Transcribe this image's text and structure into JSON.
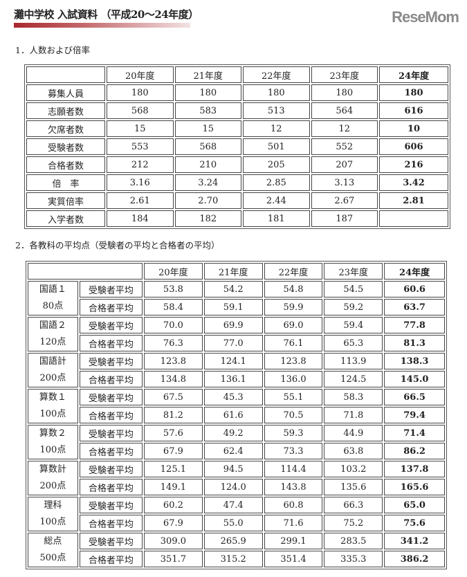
{
  "title": "灘中学校 入試資料 （平成20～24年度）",
  "section1": {
    "heading": "1．人数および倍率",
    "headers": [
      "",
      "20年度",
      "21年度",
      "22年度",
      "23年度",
      "24年度"
    ],
    "rows": [
      {
        "label": "募集人員",
        "values": [
          "180",
          "180",
          "180",
          "180",
          "180"
        ]
      },
      {
        "label": "志願者数",
        "values": [
          "568",
          "583",
          "513",
          "564",
          "616"
        ]
      },
      {
        "label": "欠席者数",
        "values": [
          "15",
          "15",
          "12",
          "12",
          "10"
        ]
      },
      {
        "label": "受験者数",
        "values": [
          "553",
          "568",
          "501",
          "552",
          "606"
        ]
      },
      {
        "label": "合格者数",
        "values": [
          "212",
          "210",
          "205",
          "207",
          "216"
        ]
      },
      {
        "label": "倍　率",
        "values": [
          "3.16",
          "3.24",
          "2.85",
          "3.13",
          "3.42"
        ]
      },
      {
        "label": "実質倍率",
        "values": [
          "2.61",
          "2.70",
          "2.44",
          "2.67",
          "2.81"
        ]
      },
      {
        "label": "入学者数",
        "values": [
          "184",
          "182",
          "181",
          "187",
          ""
        ]
      }
    ]
  },
  "section2": {
    "heading": "2．各教科の平均点（受験者の平均と合格者の平均）",
    "headers": [
      "",
      "20年度",
      "21年度",
      "22年度",
      "23年度",
      "24年度"
    ],
    "row_labels": [
      "受験者平均",
      "合格者平均"
    ],
    "groups": [
      {
        "name": "国語１",
        "points": "80点",
        "rows": [
          [
            "53.8",
            "54.2",
            "54.8",
            "54.5",
            "60.6"
          ],
          [
            "58.4",
            "59.1",
            "59.9",
            "59.2",
            "63.7"
          ]
        ]
      },
      {
        "name": "国語２",
        "points": "120点",
        "rows": [
          [
            "70.0",
            "69.9",
            "69.0",
            "59.4",
            "77.8"
          ],
          [
            "76.3",
            "77.0",
            "76.1",
            "65.3",
            "81.3"
          ]
        ]
      },
      {
        "name": "国語計",
        "points": "200点",
        "rows": [
          [
            "123.8",
            "124.1",
            "123.8",
            "113.9",
            "138.3"
          ],
          [
            "134.8",
            "136.1",
            "136.0",
            "124.5",
            "145.0"
          ]
        ]
      },
      {
        "name": "算数１",
        "points": "100点",
        "rows": [
          [
            "67.5",
            "45.3",
            "55.1",
            "58.3",
            "66.5"
          ],
          [
            "81.2",
            "61.6",
            "70.5",
            "71.8",
            "79.4"
          ]
        ]
      },
      {
        "name": "算数２",
        "points": "100点",
        "rows": [
          [
            "57.6",
            "49.2",
            "59.3",
            "44.9",
            "71.4"
          ],
          [
            "67.9",
            "62.4",
            "73.3",
            "63.8",
            "86.2"
          ]
        ]
      },
      {
        "name": "算数計",
        "points": "200点",
        "rows": [
          [
            "125.1",
            "94.5",
            "114.4",
            "103.2",
            "137.8"
          ],
          [
            "149.1",
            "124.0",
            "143.8",
            "135.6",
            "165.6"
          ]
        ]
      },
      {
        "name": "理科",
        "points": "100点",
        "rows": [
          [
            "60.2",
            "47.4",
            "60.8",
            "66.3",
            "65.0"
          ],
          [
            "67.9",
            "55.0",
            "71.6",
            "75.2",
            "75.6"
          ]
        ]
      },
      {
        "name": "総点",
        "points": "500点",
        "rows": [
          [
            "309.0",
            "265.9",
            "299.1",
            "283.5",
            "341.2"
          ],
          [
            "351.7",
            "315.2",
            "351.4",
            "335.3",
            "386.2"
          ]
        ]
      }
    ]
  },
  "watermark": "ReseMom",
  "colors": {
    "accent": "#a8282e"
  }
}
